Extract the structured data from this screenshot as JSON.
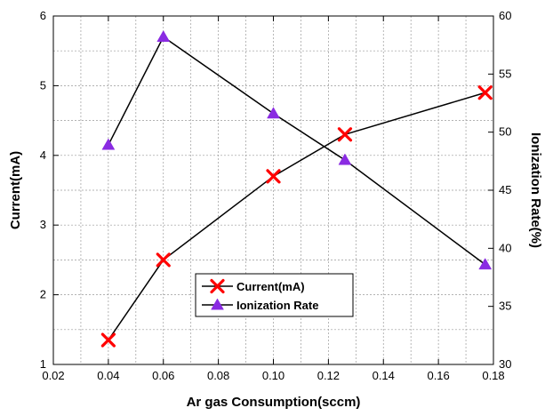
{
  "chart_data": {
    "type": "line",
    "xlabel": "Ar gas Consumption(sccm)",
    "ylabel": "Current(mA)",
    "y2label": "Ionization Rate(%)",
    "xlim": [
      0.02,
      0.18
    ],
    "ylim": [
      1,
      6
    ],
    "y2lim": [
      30,
      60
    ],
    "x_ticks": [
      "0.02",
      "0.04",
      "0.06",
      "0.08",
      "0.10",
      "0.12",
      "0.14",
      "0.16",
      "0.18"
    ],
    "y_ticks": [
      "1",
      "2",
      "3",
      "4",
      "5",
      "6"
    ],
    "y2_ticks": [
      "30",
      "35",
      "40",
      "45",
      "50",
      "55",
      "60"
    ],
    "grid": true,
    "legend_position": "bottom-center",
    "series": [
      {
        "name": "Current(mA)",
        "axis": "left",
        "marker": "x",
        "color": "#ff0000",
        "x": [
          0.04,
          0.06,
          0.1,
          0.126,
          0.177
        ],
        "values": [
          1.35,
          2.5,
          3.7,
          4.3,
          4.9
        ]
      },
      {
        "name": "Ionization Rate",
        "axis": "right",
        "marker": "triangle",
        "color": "#8a2be2",
        "x": [
          0.04,
          0.06,
          0.1,
          0.126,
          0.177
        ],
        "values": [
          48.9,
          58.2,
          51.6,
          47.6,
          38.6
        ]
      }
    ]
  }
}
